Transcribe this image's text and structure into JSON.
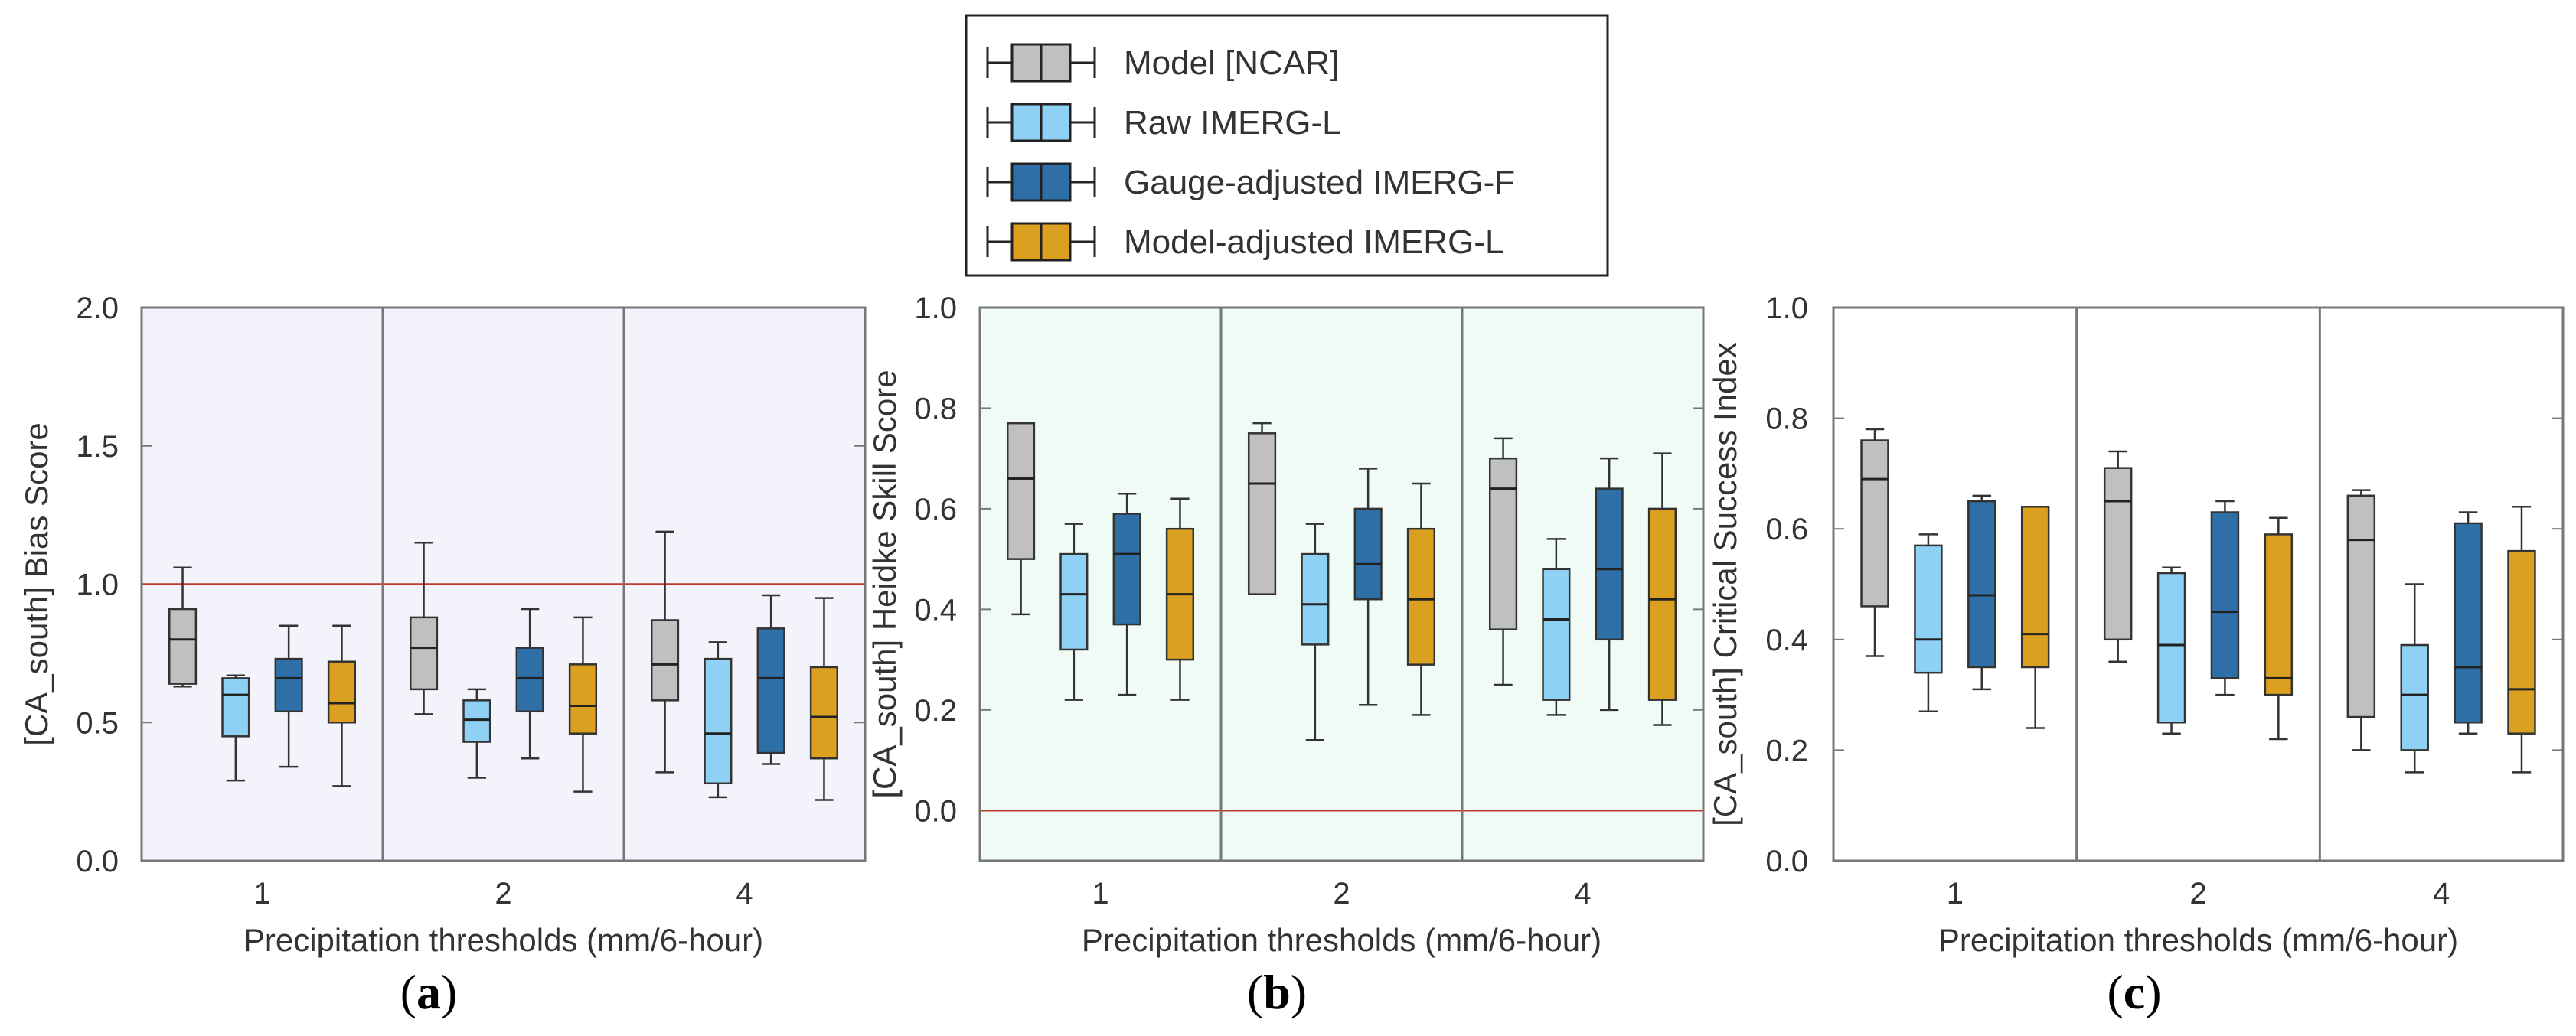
{
  "legend": {
    "entries": [
      {
        "label": "Model [NCAR]",
        "color": "#c0c0c0"
      },
      {
        "label": "Raw IMERG-L",
        "color": "#8fd0f5"
      },
      {
        "label": "Gauge-adjusted IMERG-F",
        "color": "#2f6fa8"
      },
      {
        "label": "Model-adjusted IMERG-L",
        "color": "#dca021"
      }
    ]
  },
  "chart_data": [
    {
      "type": "boxplot",
      "panel_label_open": "(",
      "panel_label_letter": "a",
      "panel_label_close": ")",
      "ylabel": "[CA_south]   Bias Score",
      "xlabel": "Precipitation thresholds (mm/6-hour)",
      "categories": [
        "1",
        "2",
        "4"
      ],
      "ylim": [
        0.0,
        2.0
      ],
      "yticks": [
        0.0,
        0.5,
        1.0,
        1.5,
        2.0
      ],
      "ytick_labels": [
        "0.0",
        "0.5",
        "1.0",
        "1.5",
        "2.0"
      ],
      "reference_line": 1.0,
      "background": "#f3f4fb",
      "series": [
        {
          "name": "Model [NCAR]",
          "boxes": [
            {
              "min": 0.63,
              "q1": 0.64,
              "median": 0.8,
              "q3": 0.91,
              "max": 1.06
            },
            {
              "min": 0.53,
              "q1": 0.62,
              "median": 0.77,
              "q3": 0.88,
              "max": 1.15
            },
            {
              "min": 0.32,
              "q1": 0.58,
              "median": 0.71,
              "q3": 0.87,
              "max": 1.19
            }
          ]
        },
        {
          "name": "Raw IMERG-L",
          "boxes": [
            {
              "min": 0.29,
              "q1": 0.45,
              "median": 0.6,
              "q3": 0.66,
              "max": 0.67
            },
            {
              "min": 0.3,
              "q1": 0.43,
              "median": 0.51,
              "q3": 0.58,
              "max": 0.62
            },
            {
              "min": 0.23,
              "q1": 0.28,
              "median": 0.46,
              "q3": 0.73,
              "max": 0.79
            }
          ]
        },
        {
          "name": "Gauge-adjusted IMERG-F",
          "boxes": [
            {
              "min": 0.34,
              "q1": 0.54,
              "median": 0.66,
              "q3": 0.73,
              "max": 0.85
            },
            {
              "min": 0.37,
              "q1": 0.54,
              "median": 0.66,
              "q3": 0.77,
              "max": 0.91
            },
            {
              "min": 0.35,
              "q1": 0.39,
              "median": 0.66,
              "q3": 0.84,
              "max": 0.96
            }
          ]
        },
        {
          "name": "Model-adjusted IMERG-L",
          "boxes": [
            {
              "min": 0.27,
              "q1": 0.5,
              "median": 0.57,
              "q3": 0.72,
              "max": 0.85
            },
            {
              "min": 0.25,
              "q1": 0.46,
              "median": 0.56,
              "q3": 0.71,
              "max": 0.88
            },
            {
              "min": 0.22,
              "q1": 0.37,
              "median": 0.52,
              "q3": 0.7,
              "max": 0.95
            }
          ]
        }
      ]
    },
    {
      "type": "boxplot",
      "panel_label_open": "(",
      "panel_label_letter": "b",
      "panel_label_close": ")",
      "ylabel": "[CA_south]   Heidke Skill Score",
      "xlabel": "Precipitation thresholds (mm/6-hour)",
      "categories": [
        "1",
        "2",
        "4"
      ],
      "ylim": [
        -0.1,
        1.0
      ],
      "yticks": [
        0.0,
        0.2,
        0.4,
        0.6,
        0.8,
        1.0
      ],
      "ytick_labels": [
        "0.0",
        "0.2",
        "0.4",
        "0.6",
        "0.8",
        "1.0"
      ],
      "reference_line": 0.0,
      "background": "#f1fbf5",
      "series": [
        {
          "name": "Model [NCAR]",
          "boxes": [
            {
              "min": 0.39,
              "q1": 0.5,
              "median": 0.66,
              "q3": 0.77,
              "max": 0.77
            },
            {
              "min": 0.43,
              "q1": 0.43,
              "median": 0.65,
              "q3": 0.75,
              "max": 0.77
            },
            {
              "min": 0.25,
              "q1": 0.36,
              "median": 0.64,
              "q3": 0.7,
              "max": 0.74
            }
          ]
        },
        {
          "name": "Raw IMERG-L",
          "boxes": [
            {
              "min": 0.22,
              "q1": 0.32,
              "median": 0.43,
              "q3": 0.51,
              "max": 0.57
            },
            {
              "min": 0.14,
              "q1": 0.33,
              "median": 0.41,
              "q3": 0.51,
              "max": 0.57
            },
            {
              "min": 0.19,
              "q1": 0.22,
              "median": 0.38,
              "q3": 0.48,
              "max": 0.54
            }
          ]
        },
        {
          "name": "Gauge-adjusted IMERG-F",
          "boxes": [
            {
              "min": 0.23,
              "q1": 0.37,
              "median": 0.51,
              "q3": 0.59,
              "max": 0.63
            },
            {
              "min": 0.21,
              "q1": 0.42,
              "median": 0.49,
              "q3": 0.6,
              "max": 0.68
            },
            {
              "min": 0.2,
              "q1": 0.34,
              "median": 0.48,
              "q3": 0.64,
              "max": 0.7
            }
          ]
        },
        {
          "name": "Model-adjusted IMERG-L",
          "boxes": [
            {
              "min": 0.22,
              "q1": 0.3,
              "median": 0.43,
              "q3": 0.56,
              "max": 0.62
            },
            {
              "min": 0.19,
              "q1": 0.29,
              "median": 0.42,
              "q3": 0.56,
              "max": 0.65
            },
            {
              "min": 0.17,
              "q1": 0.22,
              "median": 0.42,
              "q3": 0.6,
              "max": 0.71
            }
          ]
        }
      ]
    },
    {
      "type": "boxplot",
      "panel_label_open": "(",
      "panel_label_letter": "c",
      "panel_label_close": ")",
      "ylabel": "[CA_south]   Critical Success Index",
      "xlabel": "Precipitation thresholds (mm/6-hour)",
      "categories": [
        "1",
        "2",
        "4"
      ],
      "ylim": [
        0.0,
        1.0
      ],
      "yticks": [
        0.0,
        0.2,
        0.4,
        0.6,
        0.8,
        1.0
      ],
      "ytick_labels": [
        "0.0",
        "0.2",
        "0.4",
        "0.6",
        "0.8",
        "1.0"
      ],
      "reference_line": null,
      "background": "#ffffff",
      "series": [
        {
          "name": "Model [NCAR]",
          "boxes": [
            {
              "min": 0.37,
              "q1": 0.46,
              "median": 0.69,
              "q3": 0.76,
              "max": 0.78
            },
            {
              "min": 0.36,
              "q1": 0.4,
              "median": 0.65,
              "q3": 0.71,
              "max": 0.74
            },
            {
              "min": 0.2,
              "q1": 0.26,
              "median": 0.58,
              "q3": 0.66,
              "max": 0.67
            }
          ]
        },
        {
          "name": "Raw IMERG-L",
          "boxes": [
            {
              "min": 0.27,
              "q1": 0.34,
              "median": 0.4,
              "q3": 0.57,
              "max": 0.59
            },
            {
              "min": 0.23,
              "q1": 0.25,
              "median": 0.39,
              "q3": 0.52,
              "max": 0.53
            },
            {
              "min": 0.16,
              "q1": 0.2,
              "median": 0.3,
              "q3": 0.39,
              "max": 0.5
            }
          ]
        },
        {
          "name": "Gauge-adjusted IMERG-F",
          "boxes": [
            {
              "min": 0.31,
              "q1": 0.35,
              "median": 0.48,
              "q3": 0.65,
              "max": 0.66
            },
            {
              "min": 0.3,
              "q1": 0.33,
              "median": 0.45,
              "q3": 0.63,
              "max": 0.65
            },
            {
              "min": 0.23,
              "q1": 0.25,
              "median": 0.35,
              "q3": 0.61,
              "max": 0.63
            }
          ]
        },
        {
          "name": "Model-adjusted IMERG-L",
          "boxes": [
            {
              "min": 0.24,
              "q1": 0.35,
              "median": 0.41,
              "q3": 0.64,
              "max": 0.64
            },
            {
              "min": 0.22,
              "q1": 0.3,
              "median": 0.33,
              "q3": 0.59,
              "max": 0.62
            },
            {
              "min": 0.16,
              "q1": 0.23,
              "median": 0.31,
              "q3": 0.56,
              "max": 0.64
            }
          ]
        }
      ]
    }
  ]
}
